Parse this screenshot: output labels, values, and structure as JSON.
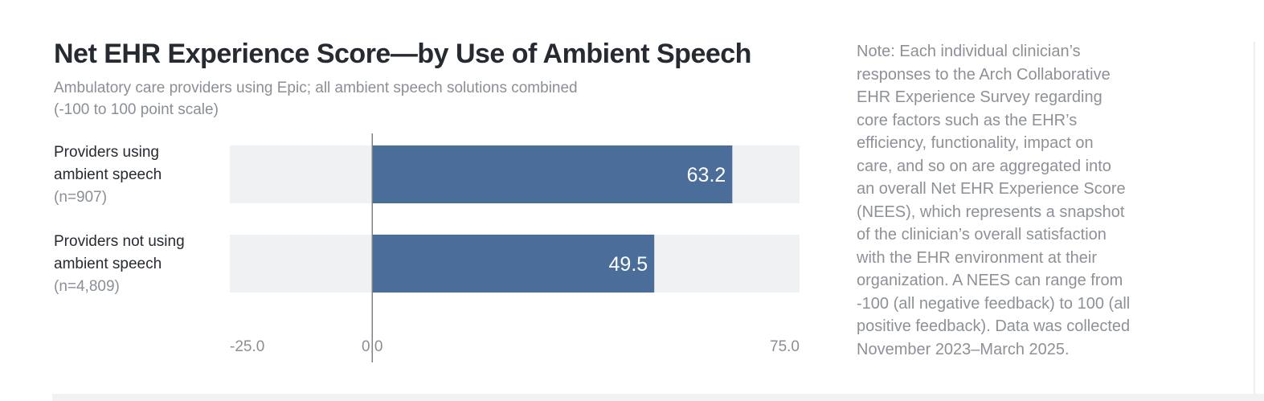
{
  "chart_data": {
    "type": "bar",
    "orientation": "horizontal",
    "title": "Net EHR Experience Score—by Use of Ambient Speech",
    "subtitle": [
      "Ambulatory care providers using Epic; all ambient speech solutions combined",
      "(-100 to 100 point scale)"
    ],
    "categories": [
      {
        "label": [
          "Providers using",
          "ambient speech"
        ],
        "n": "(n=907)"
      },
      {
        "label": [
          "Providers not using",
          "ambient speech"
        ],
        "n": "(n=4,809)"
      }
    ],
    "values": [
      63.2,
      49.5
    ],
    "data_labels": [
      "63.2",
      "49.5"
    ],
    "xlim": [
      -25,
      75
    ],
    "x_ticks": [
      -25,
      0,
      75
    ],
    "x_tick_labels": [
      "-25.0",
      "0.0",
      "75.0"
    ],
    "grid": false,
    "colors": {
      "bar": "#4a6d99",
      "track": "#f0f1f3",
      "axis": "#7d8288",
      "label": "#ffffff"
    }
  },
  "note": [
    "Note: Each individual clinician’s",
    "responses to the Arch Collaborative",
    "EHR Experience Survey regarding",
    "core factors such as the EHR’s",
    "efficiency, functionality, impact on",
    "care, and so on are aggregated into",
    "an overall Net EHR Experience Score",
    "(NEES), which represents a snapshot",
    "of the clinician’s overall satisfaction",
    "with the EHR environment at their",
    "organization. A NEES can range from",
    "-100 (all negative feedback) to 100 (all",
    "positive feedback). Data was collected",
    "November 2023–March 2025."
  ]
}
